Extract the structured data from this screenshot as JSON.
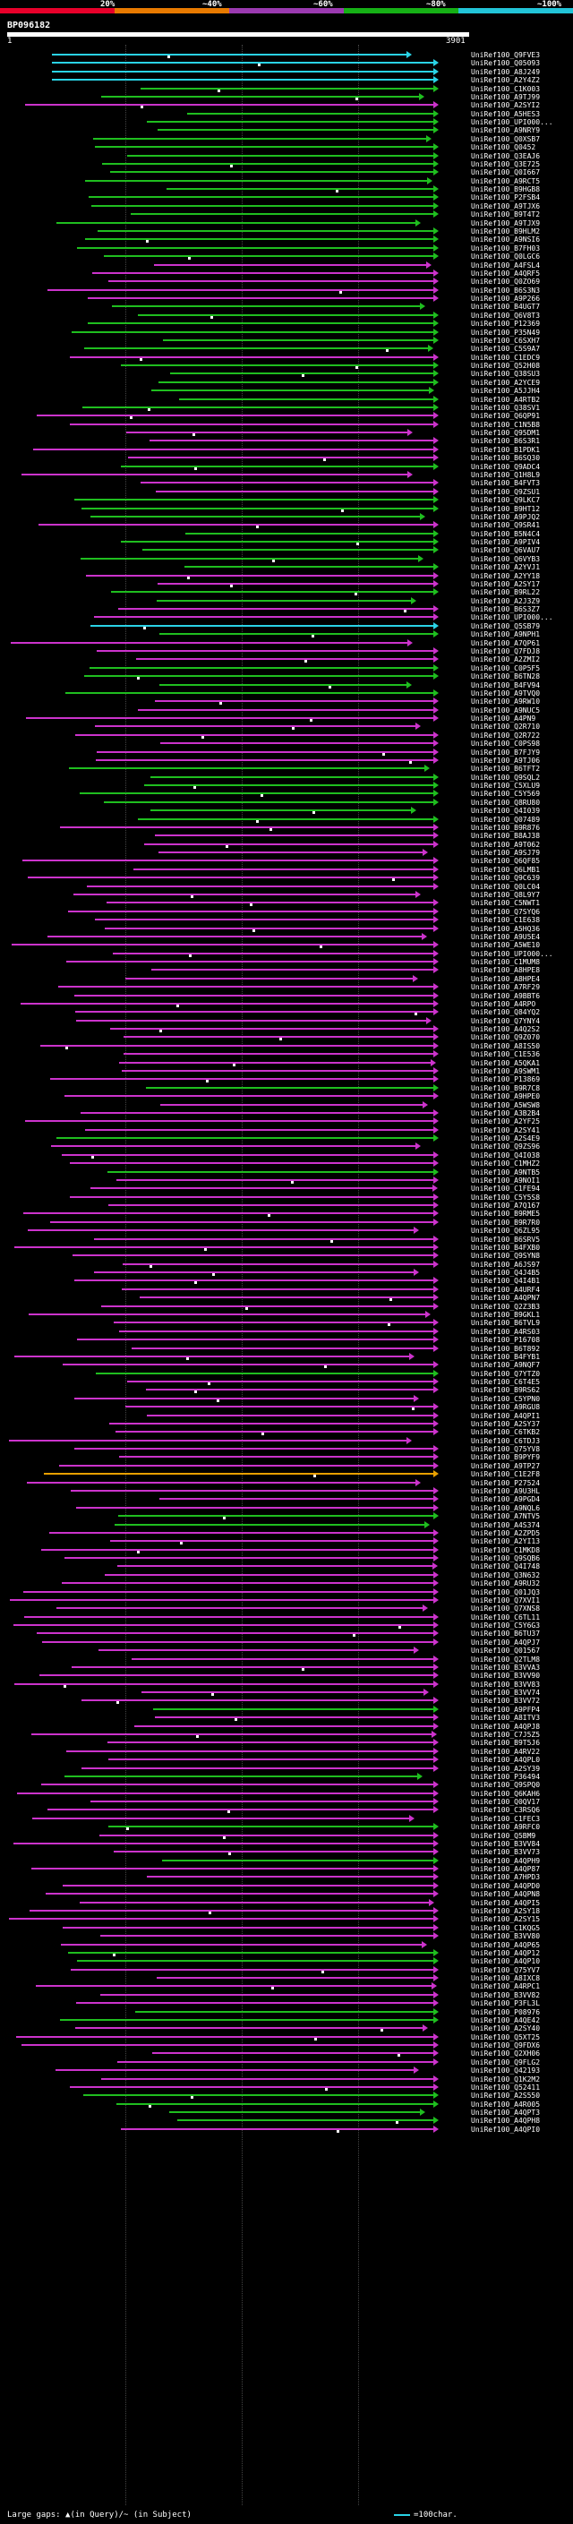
{
  "legend": {
    "labels": [
      "20%",
      "~40%",
      "~60%",
      "~80%",
      "~100%"
    ],
    "colors": [
      "#e8002a",
      "#e87a00",
      "#9b3ab0",
      "#16b016",
      "#22c4d8"
    ]
  },
  "query": {
    "id": "BP096182",
    "start_label": "1",
    "end_label": "3901"
  },
  "hit_colors": {
    "cyan": "#2ad3e6",
    "green": "#1fbe1f",
    "magenta": "#cc33cc",
    "orange": "#e8a000"
  },
  "hits": [
    {
      "label": "UniRef100_Q9FVE3",
      "color": "cyan"
    },
    {
      "label": "UniRef100_Q05093",
      "color": "cyan"
    },
    {
      "label": "UniRef100_A8J249",
      "color": "cyan"
    },
    {
      "label": "UniRef100_A2Y4Z2",
      "color": "cyan"
    },
    {
      "label": "UniRef100_C1K003",
      "color": "green"
    },
    {
      "label": "UniRef100_A9TJ99",
      "color": "green"
    },
    {
      "label": "UniRef100_A2SYI2",
      "color": "magenta"
    },
    {
      "label": "UniRef100_A5HES3",
      "color": "green"
    },
    {
      "label": "UniRef100_UPI000...",
      "color": "green"
    },
    {
      "label": "UniRef100_A9NRY9",
      "color": "green"
    },
    {
      "label": "UniRef100_Q0XSB7",
      "color": "green"
    },
    {
      "label": "UniRef100_Q0452",
      "color": "green"
    },
    {
      "label": "UniRef100_Q3EAJ6",
      "color": "green"
    },
    {
      "label": "UniRef100_Q3E725",
      "color": "green"
    },
    {
      "label": "UniRef100_Q0I667",
      "color": "green"
    },
    {
      "label": "UniRef100_A9RCT5",
      "color": "green"
    },
    {
      "label": "UniRef100_B9HGB8",
      "color": "green"
    },
    {
      "label": "UniRef100_P2FSB4",
      "color": "green"
    },
    {
      "label": "UniRef100_A9TJX6",
      "color": "green"
    },
    {
      "label": "UniRef100_B9T4T2",
      "color": "green"
    },
    {
      "label": "UniRef100_A9TJX9",
      "color": "green"
    },
    {
      "label": "UniRef100_B9HLM2",
      "color": "green"
    },
    {
      "label": "UniRef100_A9NSI6",
      "color": "green"
    },
    {
      "label": "UniRef100_B7FH03",
      "color": "green"
    },
    {
      "label": "UniRef100_Q0LGC6",
      "color": "green"
    },
    {
      "label": "UniRef100_A4FSL4",
      "color": "magenta"
    },
    {
      "label": "UniRef100_A4QRF5",
      "color": "magenta"
    },
    {
      "label": "UniRef100_Q0ZO69",
      "color": "magenta"
    },
    {
      "label": "UniRef100_B6S3N3",
      "color": "magenta"
    },
    {
      "label": "UniRef100_A9P266",
      "color": "magenta"
    },
    {
      "label": "UniRef100_B4UGT7",
      "color": "green"
    },
    {
      "label": "UniRef100_Q6V8T3",
      "color": "green"
    },
    {
      "label": "UniRef100_P12369",
      "color": "green"
    },
    {
      "label": "UniRef100_P35N49",
      "color": "green"
    },
    {
      "label": "UniRef100_C6SXH7",
      "color": "green"
    },
    {
      "label": "UniRef100_C5S9A7",
      "color": "green"
    },
    {
      "label": "UniRef100_C1EDC9",
      "color": "magenta"
    },
    {
      "label": "UniRef100_Q52H08",
      "color": "green"
    },
    {
      "label": "UniRef100_Q38SU3",
      "color": "green"
    },
    {
      "label": "UniRef100_A2YCE9",
      "color": "green"
    },
    {
      "label": "UniRef100_A5JJH4",
      "color": "green"
    },
    {
      "label": "UniRef100_A4RTB2",
      "color": "green"
    },
    {
      "label": "UniRef100_Q38SV1",
      "color": "green"
    },
    {
      "label": "UniRef100_Q6QP91",
      "color": "magenta"
    },
    {
      "label": "UniRef100_C1N5B8",
      "color": "magenta"
    },
    {
      "label": "UniRef100_Q95DM1",
      "color": "magenta"
    },
    {
      "label": "UniRef100_B6S3R1",
      "color": "magenta"
    },
    {
      "label": "UniRef100_B1PDK1",
      "color": "magenta"
    },
    {
      "label": "UniRef100_B6SQ30",
      "color": "magenta"
    },
    {
      "label": "UniRef100_Q9ADC4",
      "color": "green"
    },
    {
      "label": "UniRef100_Q1H8L9",
      "color": "magenta"
    },
    {
      "label": "UniRef100_B4FVT3",
      "color": "magenta"
    },
    {
      "label": "UniRef100_Q9ZSU1",
      "color": "magenta"
    },
    {
      "label": "UniRef100_Q9LKC7",
      "color": "green"
    },
    {
      "label": "UniRef100_B9HT12",
      "color": "green"
    },
    {
      "label": "UniRef100_A9PJQ2",
      "color": "green"
    },
    {
      "label": "UniRef100_Q9SR41",
      "color": "magenta"
    },
    {
      "label": "UniRef100_B5N4C4",
      "color": "green"
    },
    {
      "label": "UniRef100_A9PIV4",
      "color": "green"
    },
    {
      "label": "UniRef100_Q6VAU7",
      "color": "green"
    },
    {
      "label": "UniRef100_Q6VYB3",
      "color": "green"
    },
    {
      "label": "UniRef100_A2YVJ1",
      "color": "green"
    },
    {
      "label": "UniRef100_A2YY18",
      "color": "magenta"
    },
    {
      "label": "UniRef100_A2SY17",
      "color": "magenta"
    },
    {
      "label": "UniRef100_B9RL22",
      "color": "green"
    },
    {
      "label": "UniRef100_A2J3Z9",
      "color": "green"
    },
    {
      "label": "UniRef100_B6S3Z7",
      "color": "magenta"
    },
    {
      "label": "UniRef100_UPI000...",
      "color": "magenta"
    },
    {
      "label": "UniRef100_Q5SB79",
      "color": "cyan"
    },
    {
      "label": "UniRef100_A9NPH1",
      "color": "green"
    },
    {
      "label": "UniRef100_A7QP61",
      "color": "magenta"
    },
    {
      "label": "UniRef100_Q7FDJ8",
      "color": "magenta"
    },
    {
      "label": "UniRef100_A2ZMI2",
      "color": "magenta"
    },
    {
      "label": "UniRef100_C0P5F5",
      "color": "green"
    },
    {
      "label": "UniRef100_B6TN28",
      "color": "green"
    },
    {
      "label": "UniRef100_B4FV94",
      "color": "green"
    },
    {
      "label": "UniRef100_A9TVQ0",
      "color": "green"
    },
    {
      "label": "UniRef100_A9RW10",
      "color": "magenta"
    },
    {
      "label": "UniRef100_A9NUC5",
      "color": "magenta"
    },
    {
      "label": "UniRef100_A4PN9",
      "color": "magenta"
    },
    {
      "label": "UniRef100_Q2R710",
      "color": "magenta"
    },
    {
      "label": "UniRef100_Q2R722",
      "color": "magenta"
    },
    {
      "label": "UniRef100_C0PS98",
      "color": "magenta"
    },
    {
      "label": "UniRef100_B7FJY9",
      "color": "magenta"
    },
    {
      "label": "UniRef100_A9TJ06",
      "color": "magenta"
    },
    {
      "label": "UniRef100_B6TFT2",
      "color": "green"
    },
    {
      "label": "UniRef100_Q9SQL2",
      "color": "green"
    },
    {
      "label": "UniRef100_C5XLU9",
      "color": "green"
    },
    {
      "label": "UniRef100_C5Y569",
      "color": "green"
    },
    {
      "label": "UniRef100_Q8RU80",
      "color": "green"
    },
    {
      "label": "UniRef100_Q4I039",
      "color": "green"
    },
    {
      "label": "UniRef100_Q07489",
      "color": "green"
    },
    {
      "label": "UniRef100_B9R876",
      "color": "magenta"
    },
    {
      "label": "UniRef100_B8AJ38",
      "color": "magenta"
    },
    {
      "label": "UniRef100_A9T062",
      "color": "magenta"
    },
    {
      "label": "UniRef100_A9SJ79",
      "color": "magenta"
    },
    {
      "label": "UniRef100_Q6QF85",
      "color": "magenta"
    },
    {
      "label": "UniRef100_Q6LMB1",
      "color": "magenta"
    },
    {
      "label": "UniRef100_Q9C639",
      "color": "magenta"
    },
    {
      "label": "UniRef100_Q0LC04",
      "color": "magenta"
    },
    {
      "label": "UniRef100_Q8L9Y7",
      "color": "magenta"
    },
    {
      "label": "UniRef100_C5NWT1",
      "color": "magenta"
    },
    {
      "label": "UniRef100_Q7SYQ6",
      "color": "magenta"
    },
    {
      "label": "UniRef100_C1E638",
      "color": "magenta"
    },
    {
      "label": "UniRef100_A5HQ36",
      "color": "magenta"
    },
    {
      "label": "UniRef100_A9U5E4",
      "color": "magenta"
    },
    {
      "label": "UniRef100_A5WE10",
      "color": "magenta"
    },
    {
      "label": "UniRef100_UPI000...",
      "color": "magenta"
    },
    {
      "label": "UniRef100_C1MUM8",
      "color": "magenta"
    },
    {
      "label": "UniRef100_A8HPE8",
      "color": "magenta"
    },
    {
      "label": "UniRef100_A8HPE4",
      "color": "magenta"
    },
    {
      "label": "UniRef100_A7RF29",
      "color": "magenta"
    },
    {
      "label": "UniRef100_A9BBT6",
      "color": "magenta"
    },
    {
      "label": "UniRef100_A4RPO",
      "color": "magenta"
    },
    {
      "label": "UniRef100_Q84YQ2",
      "color": "magenta"
    },
    {
      "label": "UniRef100_Q7YNY4",
      "color": "magenta"
    },
    {
      "label": "UniRef100_A4Q2S2",
      "color": "magenta"
    },
    {
      "label": "UniRef100_Q9Z070",
      "color": "magenta"
    },
    {
      "label": "UniRef100_A8IS50",
      "color": "magenta"
    },
    {
      "label": "UniRef100_C1E536",
      "color": "magenta"
    },
    {
      "label": "UniRef100_A5QKA1",
      "color": "magenta"
    },
    {
      "label": "UniRef100_A9SWM1",
      "color": "magenta"
    },
    {
      "label": "UniRef100_P13869",
      "color": "magenta"
    },
    {
      "label": "UniRef100_B9R7C8",
      "color": "green"
    },
    {
      "label": "UniRef100_A9HPE0",
      "color": "magenta"
    },
    {
      "label": "UniRef100_A5WSW8",
      "color": "magenta"
    },
    {
      "label": "UniRef100_A3B2B4",
      "color": "magenta"
    },
    {
      "label": "UniRef100_A2YF25",
      "color": "magenta"
    },
    {
      "label": "UniRef100_A2SY41",
      "color": "magenta"
    },
    {
      "label": "UniRef100_A2S4E9",
      "color": "green"
    },
    {
      "label": "UniRef100_Q9ZS96",
      "color": "magenta"
    },
    {
      "label": "UniRef100_Q4I038",
      "color": "magenta"
    },
    {
      "label": "UniRef100_C1MHZ2",
      "color": "magenta"
    },
    {
      "label": "UniRef100_A9NTB5",
      "color": "green"
    },
    {
      "label": "UniRef100_A9NOI1",
      "color": "magenta"
    },
    {
      "label": "UniRef100_C1FE94",
      "color": "magenta"
    },
    {
      "label": "UniRef100_C5Y5S8",
      "color": "magenta"
    },
    {
      "label": "UniRef100_A7Q167",
      "color": "magenta"
    },
    {
      "label": "UniRef100_B9RME5",
      "color": "magenta"
    },
    {
      "label": "UniRef100_B9R7R0",
      "color": "magenta"
    },
    {
      "label": "UniRef100_Q6ZL95",
      "color": "magenta"
    },
    {
      "label": "UniRef100_B6SRV5",
      "color": "magenta"
    },
    {
      "label": "UniRef100_B4FXB0",
      "color": "magenta"
    },
    {
      "label": "UniRef100_Q9SYN8",
      "color": "magenta"
    },
    {
      "label": "UniRef100_A6JS97",
      "color": "magenta"
    },
    {
      "label": "UniRef100_Q4J4B5",
      "color": "magenta"
    },
    {
      "label": "UniRef100_Q4I4B1",
      "color": "magenta"
    },
    {
      "label": "UniRef100_A4URF4",
      "color": "magenta"
    },
    {
      "label": "UniRef100_A4QPN7",
      "color": "magenta"
    },
    {
      "label": "UniRef100_Q2Z3B3",
      "color": "magenta"
    },
    {
      "label": "UniRef100_B9GKL1",
      "color": "magenta"
    },
    {
      "label": "UniRef100_B6TVL9",
      "color": "magenta"
    },
    {
      "label": "UniRef100_A4RS03",
      "color": "magenta"
    },
    {
      "label": "UniRef100_P16708",
      "color": "magenta"
    },
    {
      "label": "UniRef100_B6T892",
      "color": "magenta"
    },
    {
      "label": "UniRef100_B4FYB1",
      "color": "magenta"
    },
    {
      "label": "UniRef100_A9NQF7",
      "color": "magenta"
    },
    {
      "label": "UniRef100_Q7YTZ0",
      "color": "green"
    },
    {
      "label": "UniRef100_C6T4E5",
      "color": "magenta"
    },
    {
      "label": "UniRef100_B9RS62",
      "color": "magenta"
    },
    {
      "label": "UniRef100_C5YPN0",
      "color": "magenta"
    },
    {
      "label": "UniRef100_A9RGU8",
      "color": "magenta"
    },
    {
      "label": "UniRef100_A4QPI1",
      "color": "magenta"
    },
    {
      "label": "UniRef100_A2SY37",
      "color": "magenta"
    },
    {
      "label": "UniRef100_C6TKB2",
      "color": "magenta"
    },
    {
      "label": "UniRef100_C6TDJ3",
      "color": "magenta"
    },
    {
      "label": "UniRef100_Q75YV8",
      "color": "magenta"
    },
    {
      "label": "UniRef100_B9PYF9",
      "color": "magenta"
    },
    {
      "label": "UniRef100_A9TP27",
      "color": "magenta"
    },
    {
      "label": "UniRef100_C1E2F8",
      "color": "orange"
    },
    {
      "label": "UniRef100_P27524",
      "color": "magenta"
    },
    {
      "label": "UniRef100_A9U3HL",
      "color": "magenta"
    },
    {
      "label": "UniRef100_A9PGD4",
      "color": "magenta"
    },
    {
      "label": "UniRef100_A9NQL6",
      "color": "magenta"
    },
    {
      "label": "UniRef100_A7NTV5",
      "color": "green"
    },
    {
      "label": "UniRef100_A4S374",
      "color": "green"
    },
    {
      "label": "UniRef100_A2ZPD5",
      "color": "magenta"
    },
    {
      "label": "UniRef100_A2YI13",
      "color": "magenta"
    },
    {
      "label": "UniRef100_C1MKD8",
      "color": "magenta"
    },
    {
      "label": "UniRef100_Q9SQB6",
      "color": "magenta"
    },
    {
      "label": "UniRef100_Q4I748",
      "color": "magenta"
    },
    {
      "label": "UniRef100_Q3N632",
      "color": "magenta"
    },
    {
      "label": "UniRef100_A9RU32",
      "color": "magenta"
    },
    {
      "label": "UniRef100_Q01JQ3",
      "color": "magenta"
    },
    {
      "label": "UniRef100_Q7XVI1",
      "color": "magenta"
    },
    {
      "label": "UniRef100_Q7XNS8",
      "color": "magenta"
    },
    {
      "label": "UniRef100_C6TL11",
      "color": "magenta"
    },
    {
      "label": "UniRef100_C5Y6G3",
      "color": "magenta"
    },
    {
      "label": "UniRef100_B6TU37",
      "color": "magenta"
    },
    {
      "label": "UniRef100_A4QPJ7",
      "color": "magenta"
    },
    {
      "label": "UniRef100_Q01567",
      "color": "magenta"
    },
    {
      "label": "UniRef100_Q2TLM8",
      "color": "magenta"
    },
    {
      "label": "UniRef100_B3VVA3",
      "color": "magenta"
    },
    {
      "label": "UniRef100_B3VV90",
      "color": "magenta"
    },
    {
      "label": "UniRef100_B3VV83",
      "color": "magenta"
    },
    {
      "label": "UniRef100_B3VV74",
      "color": "magenta"
    },
    {
      "label": "UniRef100_B3VV72",
      "color": "magenta"
    },
    {
      "label": "UniRef100_A9PFP4",
      "color": "green"
    },
    {
      "label": "UniRef100_A8ITV3",
      "color": "magenta"
    },
    {
      "label": "UniRef100_A4QPJ8",
      "color": "magenta"
    },
    {
      "label": "UniRef100_C7J5Z5",
      "color": "magenta"
    },
    {
      "label": "UniRef100_B9T5J6",
      "color": "magenta"
    },
    {
      "label": "UniRef100_A4RV22",
      "color": "magenta"
    },
    {
      "label": "UniRef100_A4QPL0",
      "color": "magenta"
    },
    {
      "label": "UniRef100_A2SY39",
      "color": "magenta"
    },
    {
      "label": "UniRef100_P36494",
      "color": "green"
    },
    {
      "label": "UniRef100_Q9SPQ0",
      "color": "magenta"
    },
    {
      "label": "UniRef100_Q6KAH6",
      "color": "magenta"
    },
    {
      "label": "UniRef100_Q0QV17",
      "color": "magenta"
    },
    {
      "label": "UniRef100_C3RSQ6",
      "color": "magenta"
    },
    {
      "label": "UniRef100_C1FEC3",
      "color": "magenta"
    },
    {
      "label": "UniRef100_A9RFC0",
      "color": "green"
    },
    {
      "label": "UniRef100_Q5BM9",
      "color": "magenta"
    },
    {
      "label": "UniRef100_B3VV84",
      "color": "magenta"
    },
    {
      "label": "UniRef100_B3VV73",
      "color": "magenta"
    },
    {
      "label": "UniRef100_A4QPH9",
      "color": "green"
    },
    {
      "label": "UniRef100_A4QP87",
      "color": "magenta"
    },
    {
      "label": "UniRef100_A7HPD3",
      "color": "magenta"
    },
    {
      "label": "UniRef100_A4QPD0",
      "color": "magenta"
    },
    {
      "label": "UniRef100_A4QPN8",
      "color": "magenta"
    },
    {
      "label": "UniRef100_A4QPI5",
      "color": "magenta"
    },
    {
      "label": "UniRef100_A2SY18",
      "color": "magenta"
    },
    {
      "label": "UniRef100_A2SY15",
      "color": "magenta"
    },
    {
      "label": "UniRef100_C1KQG5",
      "color": "magenta"
    },
    {
      "label": "UniRef100_B3VV80",
      "color": "magenta"
    },
    {
      "label": "UniRef100_A4QP65",
      "color": "magenta"
    },
    {
      "label": "UniRef100_A4QP12",
      "color": "green"
    },
    {
      "label": "UniRef100_A4QP10",
      "color": "green"
    },
    {
      "label": "UniRef100_Q75YV7",
      "color": "magenta"
    },
    {
      "label": "UniRef100_A8IXC8",
      "color": "magenta"
    },
    {
      "label": "UniRef100_A4RPC1",
      "color": "magenta"
    },
    {
      "label": "UniRef100_B3VV82",
      "color": "magenta"
    },
    {
      "label": "UniRef100_P3FL3L",
      "color": "magenta"
    },
    {
      "label": "UniRef100_P08976",
      "color": "green"
    },
    {
      "label": "UniRef100_A4QE42",
      "color": "green"
    },
    {
      "label": "UniRef100_A2SY40",
      "color": "magenta"
    },
    {
      "label": "UniRef100_Q5XT25",
      "color": "magenta"
    },
    {
      "label": "UniRef100_Q9FDX6",
      "color": "magenta"
    },
    {
      "label": "UniRef100_Q2XH06",
      "color": "magenta"
    },
    {
      "label": "UniRef100_Q9FLG2",
      "color": "magenta"
    },
    {
      "label": "UniRef100_Q42193",
      "color": "magenta"
    },
    {
      "label": "UniRef100_Q1K2M2",
      "color": "magenta"
    },
    {
      "label": "UniRef100_Q52411",
      "color": "magenta"
    },
    {
      "label": "UniRef100_A2S550",
      "color": "green"
    },
    {
      "label": "UniRef100_A4R005",
      "color": "green"
    },
    {
      "label": "UniRef100_A4QPT3",
      "color": "green"
    },
    {
      "label": "UniRef100_A4QPH8",
      "color": "green"
    },
    {
      "label": "UniRef100_A4QPI0",
      "color": "magenta"
    }
  ],
  "footer": {
    "gaps_text": "Large gaps: ▲(in Query)/~ (in Subject)",
    "scale_text": "=100char."
  }
}
